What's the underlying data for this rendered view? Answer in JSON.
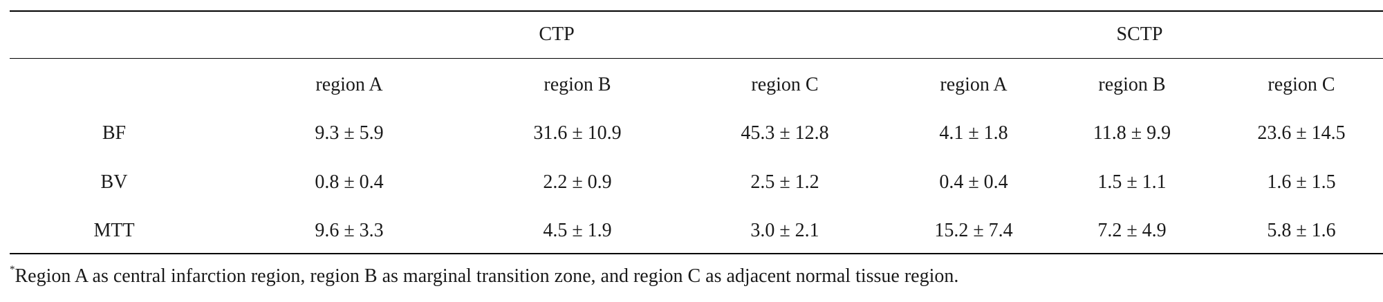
{
  "table": {
    "group_headers": [
      "CTP",
      "SCTP"
    ],
    "sub_headers": [
      "region A",
      "region B",
      "region C",
      "region A",
      "region B",
      "region C"
    ],
    "rows": [
      {
        "label": "BF",
        "values": [
          "9.3 ± 5.9",
          "31.6 ± 10.9",
          "45.3 ± 12.8",
          "4.1 ± 1.8",
          "11.8 ± 9.9",
          "23.6 ± 14.5"
        ]
      },
      {
        "label": "BV",
        "values": [
          "0.8 ± 0.4",
          "2.2 ± 0.9",
          "2.5 ± 1.2",
          "0.4 ± 0.4",
          "1.5 ± 1.1",
          "1.6 ± 1.5"
        ]
      },
      {
        "label": "MTT",
        "values": [
          "9.6 ± 3.3",
          "4.5 ± 1.9",
          "3.0 ± 2.1",
          "15.2 ± 7.4",
          "7.2 ± 4.9",
          "5.8 ± 1.6"
        ]
      }
    ]
  },
  "footnote": {
    "marker": "*",
    "text": "Region A as central infarction region, region B as marginal transition zone, and region C as adjacent normal tissue region."
  }
}
